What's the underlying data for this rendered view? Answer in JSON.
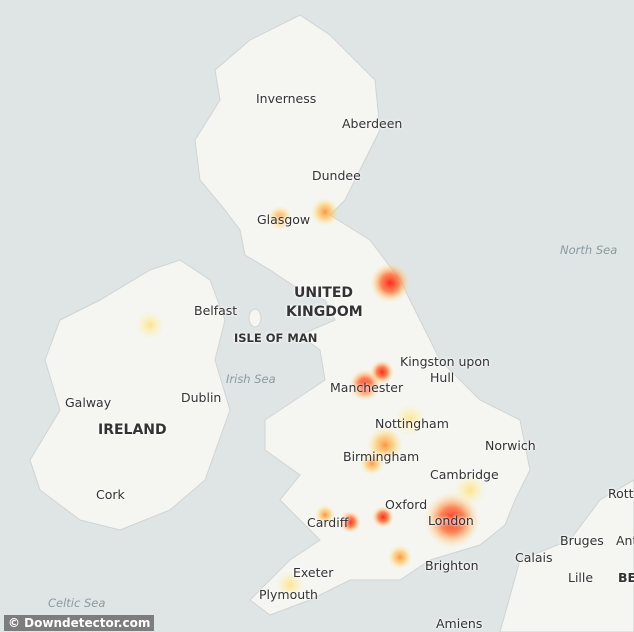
{
  "map": {
    "colors": {
      "sea": "#dfe4e4",
      "land": "#f5f5f2",
      "hot": "#ff2a1a",
      "warm": "#ffa030",
      "mild": "#ffee80"
    },
    "labels": {
      "inverness": "Inverness",
      "aberdeen": "Aberdeen",
      "dundee": "Dundee",
      "glasgow": "Glasgow",
      "north_sea": "North Sea",
      "united": "UNITED",
      "kingdom": "KINGDOM",
      "belfast": "Belfast",
      "isle_of_man": "ISLE OF MAN",
      "irish_sea": "Irish Sea",
      "kingston": "Kingston upon",
      "hull": "Hull",
      "manchester": "Manchester",
      "galway": "Galway",
      "dublin": "Dublin",
      "ireland": "IRELAND",
      "nottingham": "Nottingham",
      "norwich": "Norwich",
      "birmingham": "Birmingham",
      "cambridge": "Cambridge",
      "cork": "Cork",
      "oxford": "Oxford",
      "cardiff": "Cardiff",
      "london": "London",
      "rotte": "Rotte",
      "bruges": "Bruges",
      "antw": "Antw",
      "calais": "Calais",
      "exeter": "Exeter",
      "brighton": "Brighton",
      "lille": "Lille",
      "be": "BE",
      "plymouth": "Plymouth",
      "celtic_sea": "Celtic Sea",
      "amiens": "Amiens"
    },
    "credit": "© Downdetector.com"
  }
}
